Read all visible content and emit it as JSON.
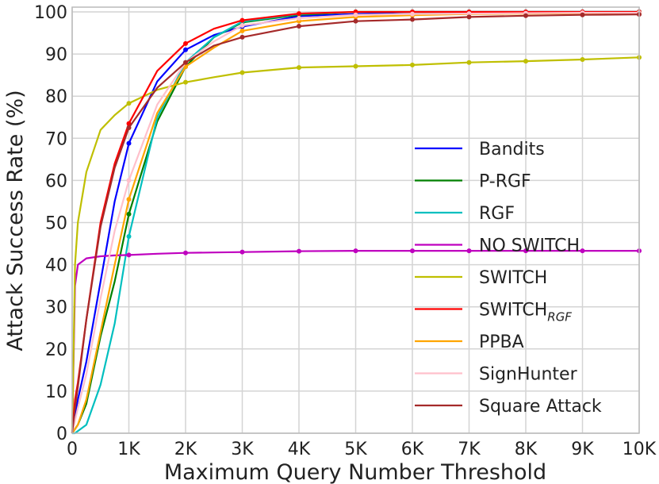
{
  "chart_data": {
    "type": "line",
    "title": "",
    "xlabel": "Maximum Query Number Threshold",
    "ylabel": "Attack Success Rate (%)",
    "xlim": [
      0,
      10000
    ],
    "ylim": [
      0,
      100
    ],
    "grid": true,
    "legend_position": "right",
    "x_ticks": [
      0,
      1000,
      2000,
      3000,
      4000,
      5000,
      6000,
      7000,
      8000,
      9000,
      10000
    ],
    "x_tick_labels": [
      "0",
      "1K",
      "2K",
      "3K",
      "4K",
      "5K",
      "6K",
      "7K",
      "8K",
      "9K",
      "10K"
    ],
    "y_ticks": [
      0,
      10,
      20,
      30,
      40,
      50,
      60,
      70,
      80,
      90,
      100
    ],
    "y_tick_labels": [
      "0",
      "10",
      "20",
      "30",
      "40",
      "50",
      "60",
      "70",
      "80",
      "90",
      "100"
    ],
    "x": [
      0,
      50,
      100,
      250,
      500,
      750,
      1000,
      1500,
      2000,
      2500,
      3000,
      4000,
      5000,
      6000,
      7000,
      8000,
      9000,
      10000
    ],
    "series": [
      {
        "name": "Bandits",
        "subscript": "",
        "color": "#0000ff",
        "values": [
          0,
          4,
          8,
          17,
          36,
          55,
          68.8,
          83.5,
          91,
          94.5,
          96.5,
          99,
          99.5,
          100,
          100,
          100,
          100,
          100
        ]
      },
      {
        "name": "P-RGF",
        "subscript": "",
        "color": "#008000",
        "values": [
          0,
          1,
          2,
          7,
          23,
          36,
          52,
          74,
          87,
          94,
          97.5,
          99.3,
          100,
          100,
          100,
          100,
          100,
          100
        ]
      },
      {
        "name": "RGF",
        "subscript": "",
        "color": "#00bfbf",
        "values": [
          0,
          0,
          0.5,
          2,
          11.5,
          26,
          46.7,
          75,
          88,
          94,
          97.7,
          99.5,
          100,
          100,
          100,
          100,
          100,
          100
        ]
      },
      {
        "name": "NO SWITCH",
        "subscript": "",
        "color": "#bf00bf",
        "values": [
          0,
          35,
          40,
          41.5,
          42,
          42.2,
          42.3,
          42.6,
          42.8,
          42.9,
          43,
          43.2,
          43.3,
          43.3,
          43.3,
          43.3,
          43.3,
          43.3
        ]
      },
      {
        "name": "SWITCH",
        "subscript": "",
        "color": "#bfbf00",
        "values": [
          0,
          40,
          50,
          62,
          72,
          75.5,
          78.3,
          81.5,
          83.3,
          84.5,
          85.6,
          86.8,
          87.1,
          87.4,
          88,
          88.3,
          88.7,
          89.2
        ]
      },
      {
        "name": "SWITCH",
        "subscript": "RGF",
        "color": "#ff0000",
        "values": [
          0,
          8,
          12,
          27,
          50,
          64,
          73.5,
          86,
          92.5,
          96,
          98,
          99.6,
          100,
          100,
          100,
          100,
          100,
          100
        ]
      },
      {
        "name": "PPBA",
        "subscript": "",
        "color": "#ffa500",
        "values": [
          0,
          1,
          2,
          8,
          24,
          40,
          55.5,
          76,
          87,
          91.5,
          95.5,
          97.8,
          98.8,
          99.2,
          99.5,
          99.6,
          99.7,
          99.8
        ]
      },
      {
        "name": "SignHunter",
        "subscript": "",
        "color": "#ffc0cb",
        "values": [
          0,
          3,
          6,
          14,
          32,
          48,
          60,
          78,
          88,
          93,
          96.8,
          98.5,
          99.3,
          99.5,
          99.6,
          99.7,
          99.8,
          99.8
        ]
      },
      {
        "name": "Square Attack",
        "subscript": "",
        "color": "#a52a2a",
        "values": [
          0,
          6,
          11,
          27,
          49,
          63,
          72.5,
          82,
          88,
          92,
          94,
          96.6,
          97.8,
          98.2,
          98.8,
          99.1,
          99.3,
          99.4
        ]
      }
    ]
  }
}
